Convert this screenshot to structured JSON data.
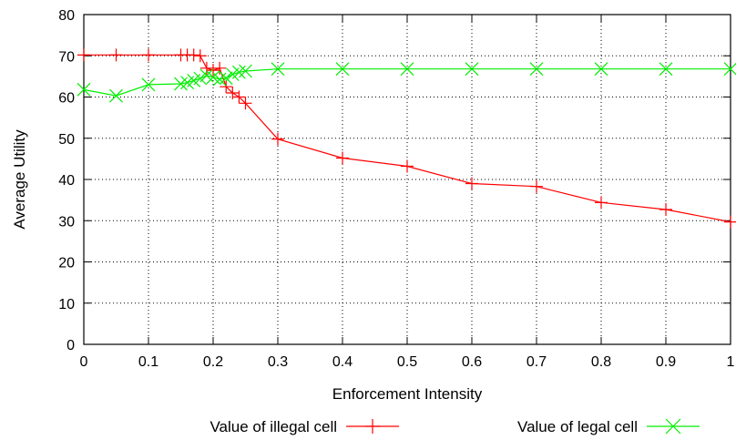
{
  "chart_data": {
    "type": "line",
    "xlabel": "Enforcement Intensity",
    "ylabel": "Average Utility",
    "xlim": [
      0,
      1
    ],
    "ylim": [
      0,
      80
    ],
    "xticks": [
      "0",
      "0.1",
      "0.2",
      "0.3",
      "0.4",
      "0.5",
      "0.6",
      "0.7",
      "0.8",
      "0.9",
      "1"
    ],
    "yticks": [
      "0",
      "10",
      "20",
      "30",
      "40",
      "50",
      "60",
      "70",
      "80"
    ],
    "grid": true,
    "legend_position": "bottom",
    "series": [
      {
        "name": "Value of illegal cell",
        "color": "#ff0000",
        "marker": "plus",
        "x": [
          0,
          0.05,
          0.1,
          0.15,
          0.16,
          0.17,
          0.18,
          0.19,
          0.2,
          0.21,
          0.22,
          0.23,
          0.24,
          0.25,
          0.3,
          0.4,
          0.5,
          0.6,
          0.7,
          0.8,
          0.9,
          1.0
        ],
        "y": [
          70.2,
          70.2,
          70.2,
          70.2,
          70.2,
          70.2,
          70.0,
          67.0,
          66.5,
          67.0,
          62.5,
          61.0,
          60.0,
          58.5,
          49.8,
          45.2,
          43.2,
          39.0,
          38.3,
          34.4,
          32.7,
          29.7
        ]
      },
      {
        "name": "Value of legal cell",
        "color": "#00ee00",
        "marker": "cross",
        "x": [
          0,
          0.05,
          0.1,
          0.15,
          0.16,
          0.17,
          0.18,
          0.19,
          0.2,
          0.21,
          0.22,
          0.23,
          0.24,
          0.25,
          0.3,
          0.4,
          0.5,
          0.6,
          0.7,
          0.8,
          0.9,
          1.0
        ],
        "y": [
          61.8,
          60.3,
          63.0,
          63.2,
          63.5,
          64.0,
          64.5,
          65.2,
          64.8,
          64.3,
          64.6,
          65.5,
          66.0,
          66.3,
          66.8,
          66.8,
          66.8,
          66.8,
          66.8,
          66.8,
          66.8,
          66.8
        ]
      }
    ]
  }
}
